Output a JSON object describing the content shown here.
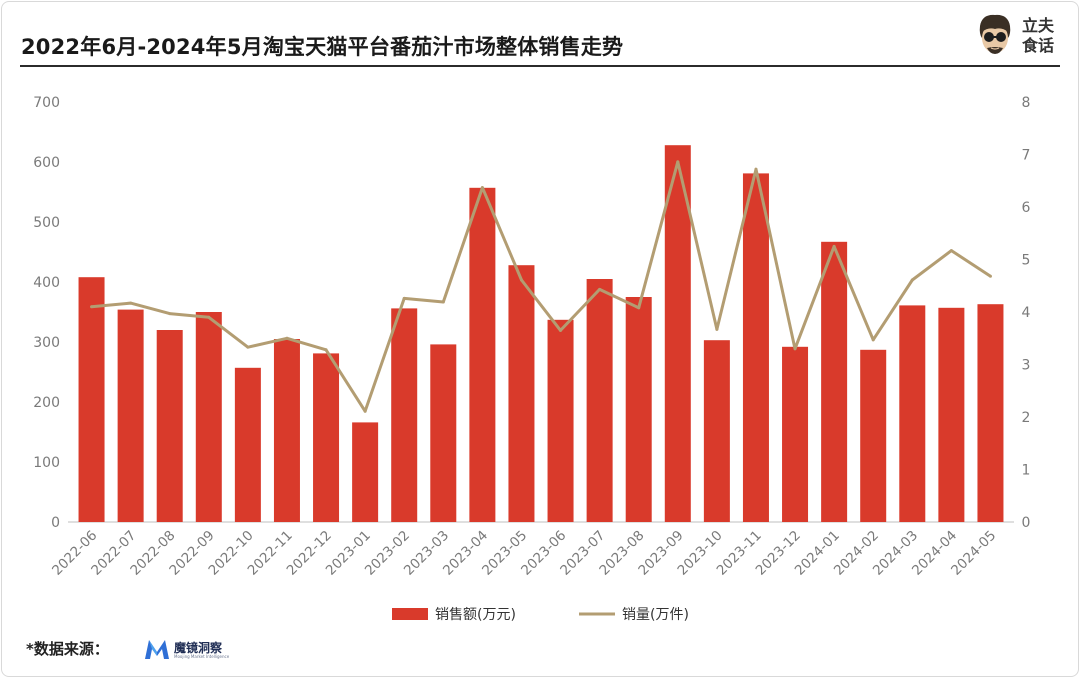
{
  "title": "2022年6月-2024年5月淘宝天猫平台番茄汁市场整体销售走势",
  "logo": {
    "line1": "立夫",
    "line2": "食话"
  },
  "source": {
    "label": "*数据来源：",
    "brand_name": "魔镜洞察",
    "brand_sub": "Moojing Market Intelligence"
  },
  "colors": {
    "bar": "#d93a2b",
    "line": "#b39d72",
    "title_rule": "#2b2b2b"
  },
  "chart_data": {
    "type": "bar+line",
    "title": "2022年6月-2024年5月淘宝天猫平台番茄汁市场整体销售走势",
    "categories": [
      "2022-06",
      "2022-07",
      "2022-08",
      "2022-09",
      "2022-10",
      "2022-11",
      "2022-12",
      "2023-01",
      "2023-02",
      "2023-03",
      "2023-04",
      "2023-05",
      "2023-06",
      "2023-07",
      "2023-08",
      "2023-09",
      "2023-10",
      "2023-11",
      "2023-12",
      "2024-01",
      "2024-02",
      "2024-03",
      "2024-04",
      "2024-05"
    ],
    "series": [
      {
        "name": "销售额(万元)",
        "type": "bar",
        "axis": "left",
        "values": [
          408,
          354,
          320,
          350,
          257,
          305,
          281,
          166,
          356,
          296,
          557,
          428,
          337,
          405,
          375,
          628,
          303,
          581,
          292,
          467,
          287,
          361,
          357,
          363
        ]
      },
      {
        "name": "销量(万件)",
        "type": "line",
        "axis": "right",
        "values": [
          4.1,
          4.17,
          3.97,
          3.9,
          3.33,
          3.5,
          3.28,
          2.11,
          4.26,
          4.19,
          6.37,
          4.61,
          3.65,
          4.43,
          4.08,
          6.86,
          3.67,
          6.72,
          3.3,
          5.25,
          3.47,
          4.61,
          5.17,
          4.68
        ]
      }
    ],
    "y_left": {
      "range": [
        0,
        700
      ],
      "ticks": [
        "0",
        "100",
        "200",
        "300",
        "400",
        "500",
        "600",
        "700"
      ]
    },
    "y_right": {
      "range": [
        0,
        8
      ],
      "ticks": [
        "0",
        "1",
        "2",
        "3",
        "4",
        "5",
        "6",
        "7",
        "8"
      ]
    },
    "grid": false,
    "legend_position": "bottom-center"
  }
}
